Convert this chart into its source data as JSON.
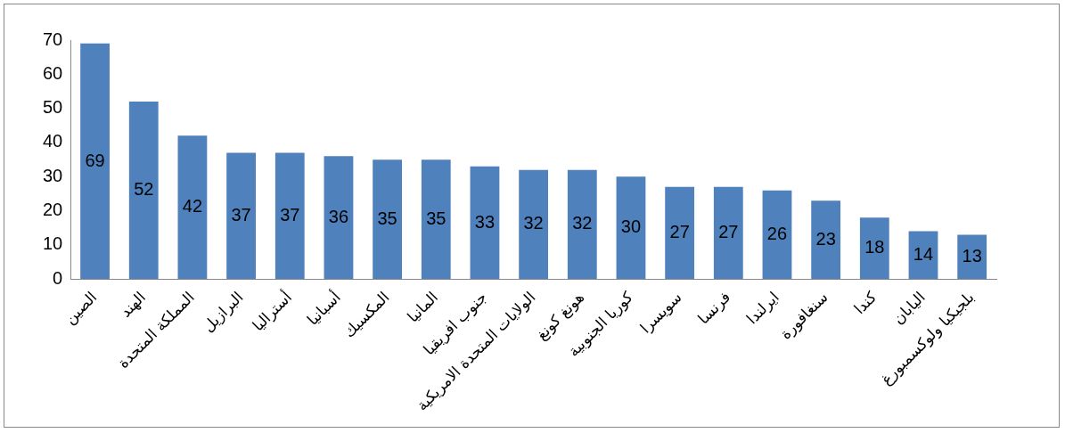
{
  "chart_data": {
    "type": "bar",
    "categories": [
      "الصين",
      "الهند",
      "المملكة المتحدة",
      "البرازيل",
      "أستراليا",
      "أسبانيا",
      "المكسيك",
      "المانيا",
      "جنوب افريقيا",
      "الولايات المتحدة الامريكية",
      "هونغ كونغ",
      "كوريا الجنوبية",
      "سويسرا",
      "فرنسا",
      "ايرلندا",
      "سنغافورة",
      "كندا",
      "اليابان",
      "بلجيكيا ولوكسمبورغ"
    ],
    "values": [
      69,
      52,
      42,
      37,
      37,
      36,
      35,
      35,
      33,
      32,
      32,
      30,
      27,
      27,
      26,
      23,
      18,
      14,
      13
    ],
    "color": "#4f81bd",
    "ylim": [
      0,
      70
    ],
    "yticks": [
      0,
      10,
      20,
      30,
      40,
      50,
      60,
      70
    ],
    "data_labels": true
  }
}
